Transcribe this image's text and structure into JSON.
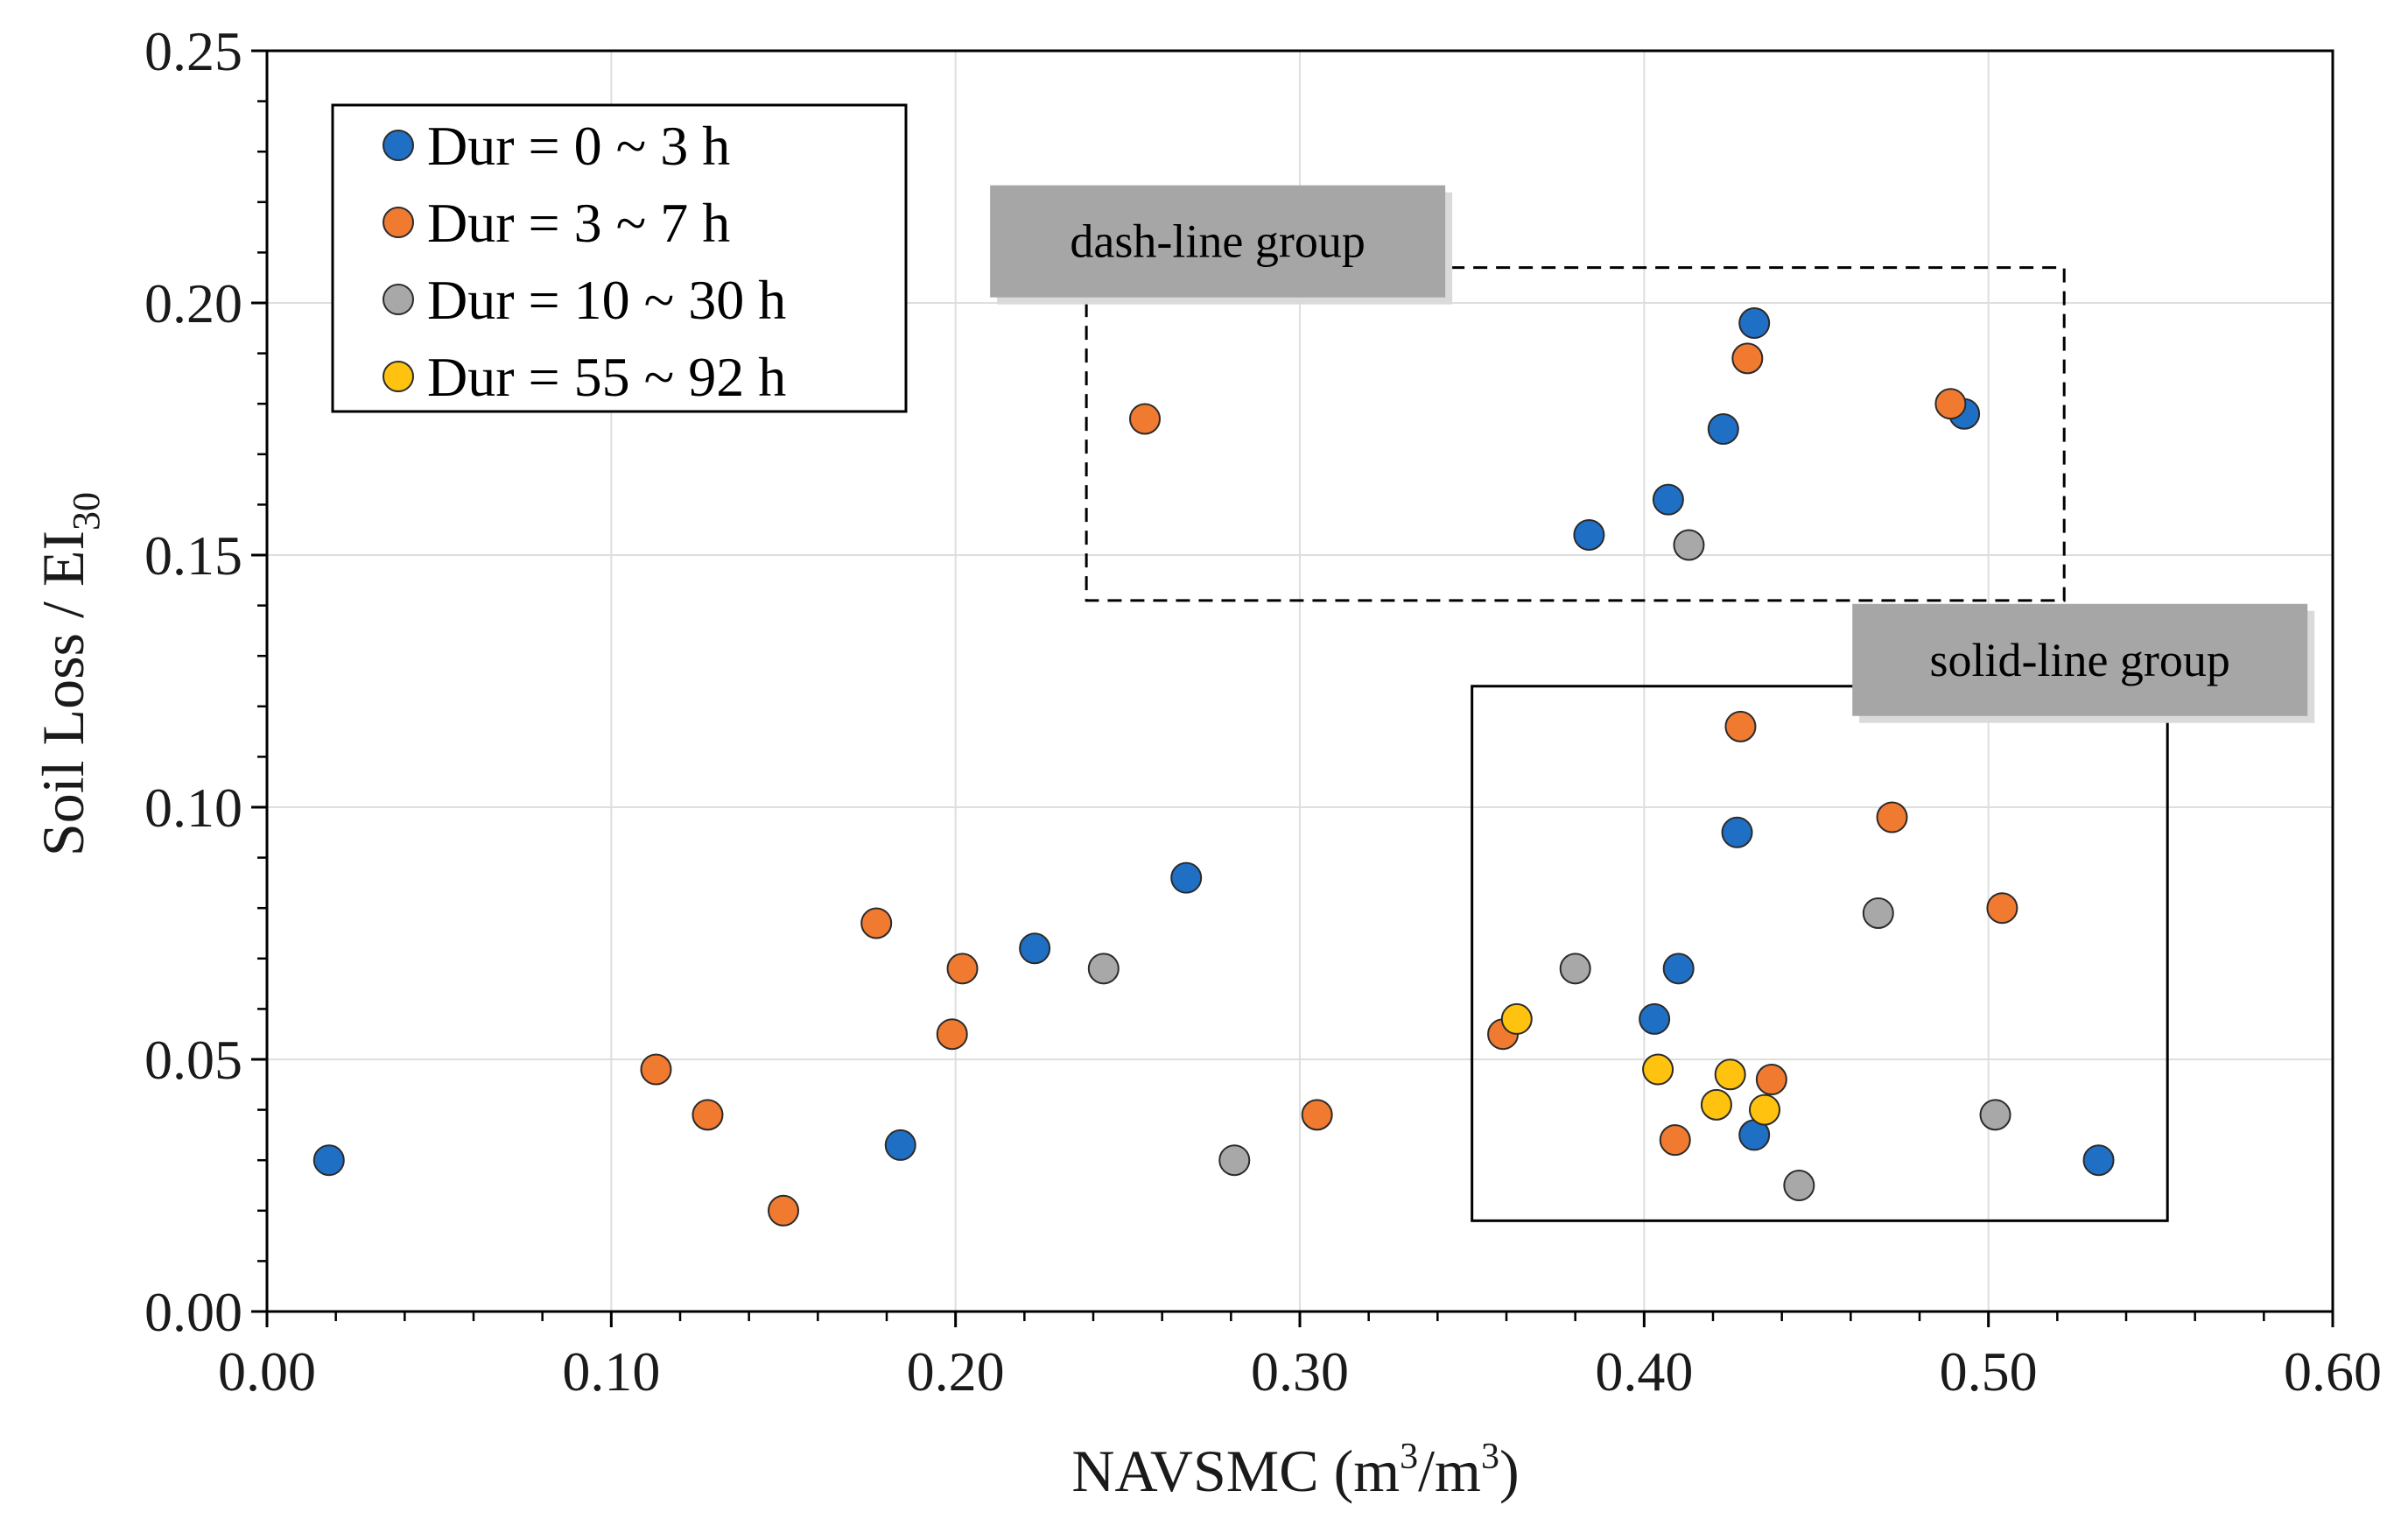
{
  "chart_data": {
    "type": "scatter",
    "title": "",
    "xlabel": "NAVSMC (m³/m³)",
    "xlabel_parts": {
      "base": "NAVSMC (m",
      "sup1": "3",
      "mid": "/m",
      "sup2": "3",
      "end": ")"
    },
    "ylabel": "Soil Loss / EI30",
    "ylabel_parts": {
      "base": "Soil Loss / EI",
      "sub": "30"
    },
    "xlim": [
      0,
      0.6
    ],
    "ylim": [
      0,
      0.25
    ],
    "x_ticks": [
      "0.00",
      "0.10",
      "0.20",
      "0.30",
      "0.40",
      "0.50",
      "0.60"
    ],
    "y_ticks": [
      "0.00",
      "0.05",
      "0.10",
      "0.15",
      "0.20",
      "0.25"
    ],
    "grid": true,
    "legend_position": "top-left",
    "series": [
      {
        "name": "Dur = 0 ~ 3 h",
        "color": "#1f6fc5",
        "points": [
          {
            "x": 0.018,
            "y": 0.03
          },
          {
            "x": 0.184,
            "y": 0.033
          },
          {
            "x": 0.223,
            "y": 0.072
          },
          {
            "x": 0.267,
            "y": 0.086
          },
          {
            "x": 0.384,
            "y": 0.154
          },
          {
            "x": 0.407,
            "y": 0.161
          },
          {
            "x": 0.423,
            "y": 0.175
          },
          {
            "x": 0.432,
            "y": 0.196
          },
          {
            "x": 0.493,
            "y": 0.178
          },
          {
            "x": 0.427,
            "y": 0.095
          },
          {
            "x": 0.41,
            "y": 0.068
          },
          {
            "x": 0.403,
            "y": 0.058
          },
          {
            "x": 0.432,
            "y": 0.035
          },
          {
            "x": 0.532,
            "y": 0.03
          }
        ]
      },
      {
        "name": "Dur = 3 ~ 7 h",
        "color": "#f07a2f",
        "points": [
          {
            "x": 0.113,
            "y": 0.048
          },
          {
            "x": 0.128,
            "y": 0.039
          },
          {
            "x": 0.15,
            "y": 0.02
          },
          {
            "x": 0.177,
            "y": 0.077
          },
          {
            "x": 0.199,
            "y": 0.055
          },
          {
            "x": 0.202,
            "y": 0.068
          },
          {
            "x": 0.255,
            "y": 0.177
          },
          {
            "x": 0.305,
            "y": 0.039
          },
          {
            "x": 0.43,
            "y": 0.189
          },
          {
            "x": 0.489,
            "y": 0.18
          },
          {
            "x": 0.428,
            "y": 0.116
          },
          {
            "x": 0.472,
            "y": 0.098
          },
          {
            "x": 0.504,
            "y": 0.08
          },
          {
            "x": 0.359,
            "y": 0.055
          },
          {
            "x": 0.437,
            "y": 0.046
          },
          {
            "x": 0.409,
            "y": 0.034
          }
        ]
      },
      {
        "name": "Dur = 10 ~ 30 h",
        "color": "#a8a8a8",
        "points": [
          {
            "x": 0.243,
            "y": 0.068
          },
          {
            "x": 0.281,
            "y": 0.03
          },
          {
            "x": 0.413,
            "y": 0.152
          },
          {
            "x": 0.38,
            "y": 0.068
          },
          {
            "x": 0.468,
            "y": 0.079
          },
          {
            "x": 0.502,
            "y": 0.039
          },
          {
            "x": 0.445,
            "y": 0.025
          }
        ]
      },
      {
        "name": "Dur = 55 ~ 92 h",
        "color": "#ffc20e",
        "points": [
          {
            "x": 0.363,
            "y": 0.058
          },
          {
            "x": 0.404,
            "y": 0.048
          },
          {
            "x": 0.425,
            "y": 0.047
          },
          {
            "x": 0.421,
            "y": 0.041
          },
          {
            "x": 0.435,
            "y": 0.04
          }
        ]
      }
    ],
    "annotations": [
      {
        "text": "dash-line group",
        "style": "dashed",
        "box_x": [
          0.238,
          0.522
        ],
        "box_y": [
          0.141,
          0.207
        ]
      },
      {
        "text": "solid-line group",
        "style": "solid",
        "box_x": [
          0.35,
          0.552
        ],
        "box_y": [
          0.018,
          0.124
        ]
      }
    ]
  }
}
